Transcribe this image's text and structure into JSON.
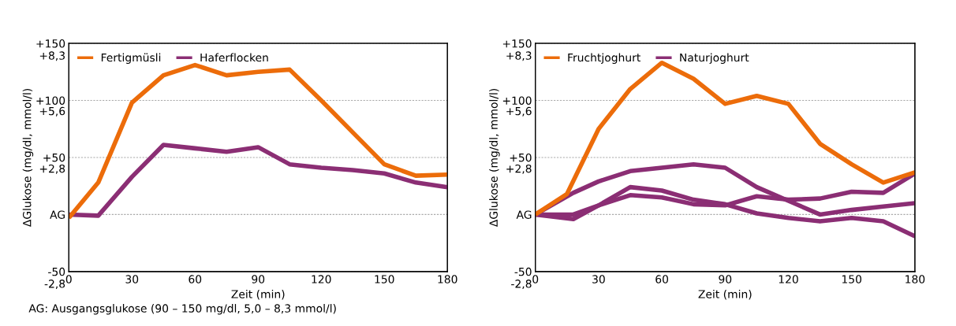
{
  "chart_data": [
    {
      "type": "line",
      "xlabel": "Zeit (min)",
      "ylabel": "ΔGlukose (mg/dl, mmol/l)",
      "xlim": [
        0,
        180
      ],
      "xticks": [
        0,
        30,
        60,
        90,
        120,
        150,
        180
      ],
      "ylim": [
        -50,
        150
      ],
      "yticks": [
        -50,
        {
          "value": 0,
          "label": "AG"
        },
        {
          "value": 50,
          "label": "+50"
        },
        {
          "value": 100,
          "label": "+100"
        },
        {
          "value": 150,
          "label": "+150"
        }
      ],
      "y2lim": [
        -2.8,
        8.3
      ],
      "y2ticks": [
        {
          "value": -2.8,
          "label": "-2,8"
        },
        {
          "value": 2.8,
          "label": "+2,8"
        },
        {
          "value": 5.6,
          "label": "+5,6"
        },
        {
          "value": 8.3,
          "label": "+8,3"
        }
      ],
      "grid": "y",
      "legend": "top left",
      "marker": "none",
      "line_style": "solid",
      "series": [
        {
          "name": "Fertigmüsli",
          "color": "#ec6c0a",
          "x": [
            0,
            14,
            30,
            45,
            60,
            75,
            90,
            105,
            120,
            135,
            150,
            165,
            180
          ],
          "values": [
            -3,
            28,
            98,
            122,
            131,
            122,
            125,
            127,
            100,
            72,
            44,
            34,
            35
          ]
        },
        {
          "name": "Haferflocken",
          "color": "#8b2e74",
          "x": [
            0,
            14,
            30,
            45,
            60,
            75,
            90,
            105,
            120,
            135,
            150,
            165,
            180
          ],
          "values": [
            0,
            -1,
            33,
            61,
            58,
            55,
            59,
            44,
            41,
            39,
            36,
            28,
            24
          ]
        }
      ],
      "annotations": [
        "AG: Ausgangsglukose (90 – 150 mg/dl, 5,0 – 8,3 mmol/l)"
      ]
    },
    {
      "type": "line",
      "xlabel": "Zeit (min)",
      "ylabel": "ΔGlukose (mg/dl, mmol/l)",
      "xlim": [
        0,
        180
      ],
      "xticks": [
        0,
        30,
        60,
        90,
        120,
        150,
        180
      ],
      "ylim": [
        -50,
        150
      ],
      "yticks": [
        -50,
        {
          "value": 0,
          "label": "AG"
        },
        {
          "value": 50,
          "label": "+50"
        },
        {
          "value": 100,
          "label": "+100"
        },
        {
          "value": 150,
          "label": "+150"
        }
      ],
      "y2lim": [
        -2.8,
        8.3
      ],
      "y2ticks": [
        {
          "value": -2.8,
          "label": "-2,8"
        },
        {
          "value": 2.8,
          "label": "+2,8"
        },
        {
          "value": 5.6,
          "label": "+5,6"
        },
        {
          "value": 8.3,
          "label": "+8,3"
        }
      ],
      "grid": "y",
      "legend": "top left",
      "marker": "none",
      "line_style": "solid",
      "series": [
        {
          "name": "Fruchtjoghurt",
          "color": "#ec6c0a",
          "x": [
            0,
            15,
            30,
            45,
            60,
            75,
            90,
            105,
            120,
            135,
            150,
            165,
            180
          ],
          "values": [
            0,
            18,
            75,
            110,
            133,
            119,
            97,
            104,
            97,
            62,
            44,
            28,
            37
          ]
        },
        {
          "name": "Naturjoghurt",
          "color": "#8b2e74",
          "x": [
            0,
            18,
            30,
            45,
            60,
            75,
            90,
            105,
            120,
            135,
            150,
            165,
            180
          ],
          "values": [
            0,
            19,
            29,
            38,
            41,
            44,
            41,
            24,
            12,
            0,
            4,
            7,
            10
          ]
        },
        {
          "color": "#8b2e74",
          "x": [
            0,
            18,
            30,
            45,
            60,
            75,
            90,
            105,
            120,
            135,
            150,
            165,
            180
          ],
          "values": [
            0,
            0,
            8,
            24,
            21,
            13,
            9,
            1,
            -3,
            -6,
            -3,
            -6,
            -19
          ]
        },
        {
          "color": "#8b2e74",
          "x": [
            0,
            18,
            30,
            45,
            60,
            75,
            90,
            105,
            120,
            135,
            150,
            165,
            180
          ],
          "values": [
            0,
            -4,
            8,
            17,
            15,
            9,
            8,
            16,
            13,
            14,
            20,
            19,
            36
          ]
        }
      ]
    }
  ]
}
